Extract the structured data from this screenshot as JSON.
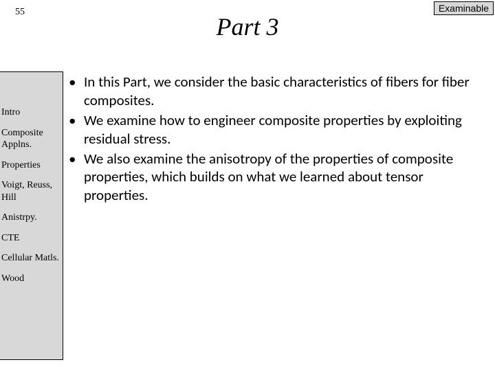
{
  "slide_number": "55",
  "badge": "Examinable",
  "title": "Part 3",
  "sidebar": {
    "items": [
      "Intro",
      "Composite Applns.",
      "Properties",
      "Voigt, Reuss, Hill",
      "Anistrpy.",
      "CTE",
      "Cellular Matls.",
      "Wood"
    ]
  },
  "bullets": [
    "In this Part, we consider the basic characteristics of fibers for fiber composites.",
    "We examine how to engineer composite properties by exploiting residual stress.",
    "We also examine the anisotropy of the properties of composite properties, which builds on what we learned about tensor properties."
  ],
  "colors": {
    "background": "#ffffff",
    "sidebar_bg": "#d8d8d8",
    "badge_bg": "#d8d8d8",
    "text": "#000000",
    "border": "#000000"
  },
  "fonts": {
    "title_family": "Times New Roman",
    "title_size_pt": 28,
    "title_style": "italic",
    "sidebar_family": "Times New Roman",
    "sidebar_size_pt": 11,
    "body_family": "Calibri",
    "body_size_pt": 16,
    "badge_family": "Arial",
    "badge_size_pt": 11
  }
}
